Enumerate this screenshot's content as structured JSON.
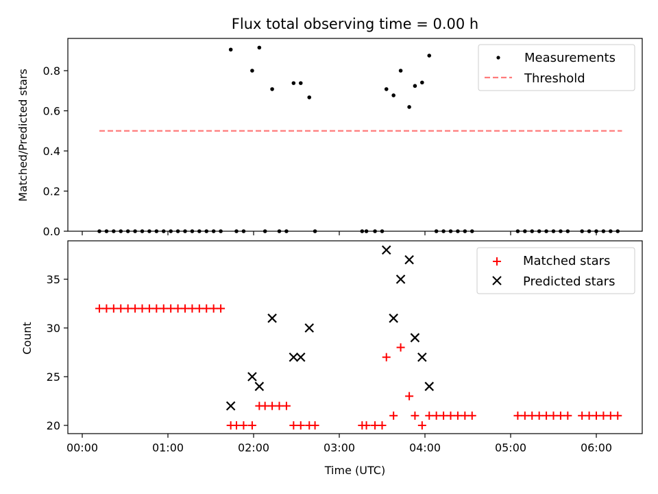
{
  "chart_data": [
    {
      "type": "scatter",
      "title": "Flux total observing time = 0.00 h",
      "xlabel": "",
      "ylabel": "Matched/Predicted stars",
      "xlim": [
        "00:00",
        "06:30"
      ],
      "ylim": [
        0,
        0.96
      ],
      "yticks": [
        0.0,
        0.2,
        0.4,
        0.6,
        0.8
      ],
      "ytick_labels": [
        "0.0",
        "0.2",
        "0.4",
        "0.6",
        "0.8"
      ],
      "xticks": [
        "00:00",
        "01:00",
        "02:00",
        "03:00",
        "04:00",
        "05:00",
        "06:00"
      ],
      "legend_position": "top-right",
      "series": [
        {
          "name": "Measurements",
          "marker": "dot",
          "color": "#000000",
          "points": [
            [
              "00:12",
              0.0
            ],
            [
              "00:17",
              0.0
            ],
            [
              "00:22",
              0.0
            ],
            [
              "00:27",
              0.0
            ],
            [
              "00:32",
              0.0
            ],
            [
              "00:37",
              0.0
            ],
            [
              "00:42",
              0.0
            ],
            [
              "00:47",
              0.0
            ],
            [
              "00:52",
              0.0
            ],
            [
              "00:57",
              0.0
            ],
            [
              "01:02",
              0.0
            ],
            [
              "01:07",
              0.0
            ],
            [
              "01:12",
              0.0
            ],
            [
              "01:17",
              0.0
            ],
            [
              "01:22",
              0.0
            ],
            [
              "01:27",
              0.0
            ],
            [
              "01:32",
              0.0
            ],
            [
              "01:37",
              0.0
            ],
            [
              "01:44",
              0.905
            ],
            [
              "01:48",
              0.0
            ],
            [
              "01:53",
              0.0
            ],
            [
              "01:59",
              0.8
            ],
            [
              "02:04",
              0.915
            ],
            [
              "02:08",
              0.0
            ],
            [
              "02:13",
              0.708
            ],
            [
              "02:18",
              0.0
            ],
            [
              "02:23",
              0.0
            ],
            [
              "02:28",
              0.738
            ],
            [
              "02:33",
              0.738
            ],
            [
              "02:39",
              0.667
            ],
            [
              "02:43",
              0.0
            ],
            [
              "03:16",
              0.0
            ],
            [
              "03:19",
              0.0
            ],
            [
              "03:25",
              0.0
            ],
            [
              "03:30",
              0.0
            ],
            [
              "03:33",
              0.708
            ],
            [
              "03:38",
              0.677
            ],
            [
              "03:43",
              0.8
            ],
            [
              "03:49",
              0.619
            ],
            [
              "03:53",
              0.724
            ],
            [
              "03:58",
              0.741
            ],
            [
              "04:03",
              0.875
            ],
            [
              "04:08",
              0.0
            ],
            [
              "04:13",
              0.0
            ],
            [
              "04:18",
              0.0
            ],
            [
              "04:23",
              0.0
            ],
            [
              "04:28",
              0.0
            ],
            [
              "04:33",
              0.0
            ],
            [
              "05:05",
              0.0
            ],
            [
              "05:10",
              0.0
            ],
            [
              "05:15",
              0.0
            ],
            [
              "05:20",
              0.0
            ],
            [
              "05:25",
              0.0
            ],
            [
              "05:30",
              0.0
            ],
            [
              "05:35",
              0.0
            ],
            [
              "05:40",
              0.0
            ],
            [
              "05:50",
              0.0
            ],
            [
              "05:55",
              0.0
            ],
            [
              "06:00",
              0.0
            ],
            [
              "06:05",
              0.0
            ],
            [
              "06:10",
              0.0
            ],
            [
              "06:15",
              0.0
            ]
          ]
        },
        {
          "name": "Threshold",
          "line_style": "dashed",
          "color": "#ff7b7b",
          "points": [
            [
              "00:12",
              0.5
            ],
            [
              "06:18",
              0.5
            ]
          ]
        }
      ]
    },
    {
      "type": "scatter",
      "title": "",
      "xlabel": "Time (UTC)",
      "ylabel": "Count",
      "xlim": [
        "00:00",
        "06:30"
      ],
      "ylim": [
        19,
        39
      ],
      "yticks": [
        20,
        25,
        30,
        35
      ],
      "ytick_labels": [
        "20",
        "25",
        "30",
        "35"
      ],
      "xticks": [
        "00:00",
        "01:00",
        "02:00",
        "03:00",
        "04:00",
        "05:00",
        "06:00"
      ],
      "xtick_labels": [
        "00:00",
        "01:00",
        "02:00",
        "03:00",
        "04:00",
        "05:00",
        "06:00"
      ],
      "legend_position": "top-right",
      "series": [
        {
          "name": "Matched stars",
          "marker": "plus",
          "color": "#ff0000",
          "points": [
            [
              "00:12",
              32
            ],
            [
              "00:17",
              32
            ],
            [
              "00:22",
              32
            ],
            [
              "00:27",
              32
            ],
            [
              "00:32",
              32
            ],
            [
              "00:37",
              32
            ],
            [
              "00:42",
              32
            ],
            [
              "00:47",
              32
            ],
            [
              "00:52",
              32
            ],
            [
              "00:57",
              32
            ],
            [
              "01:02",
              32
            ],
            [
              "01:07",
              32
            ],
            [
              "01:12",
              32
            ],
            [
              "01:17",
              32
            ],
            [
              "01:22",
              32
            ],
            [
              "01:27",
              32
            ],
            [
              "01:32",
              32
            ],
            [
              "01:37",
              32
            ],
            [
              "01:44",
              20
            ],
            [
              "01:48",
              20
            ],
            [
              "01:53",
              20
            ],
            [
              "01:59",
              20
            ],
            [
              "02:04",
              22
            ],
            [
              "02:08",
              22
            ],
            [
              "02:13",
              22
            ],
            [
              "02:18",
              22
            ],
            [
              "02:23",
              22
            ],
            [
              "02:28",
              20
            ],
            [
              "02:33",
              20
            ],
            [
              "02:39",
              20
            ],
            [
              "02:43",
              20
            ],
            [
              "03:16",
              20
            ],
            [
              "03:19",
              20
            ],
            [
              "03:25",
              20
            ],
            [
              "03:30",
              20
            ],
            [
              "03:33",
              27
            ],
            [
              "03:38",
              21
            ],
            [
              "03:43",
              28
            ],
            [
              "03:49",
              23
            ],
            [
              "03:53",
              21
            ],
            [
              "03:58",
              20
            ],
            [
              "04:03",
              21
            ],
            [
              "04:08",
              21
            ],
            [
              "04:13",
              21
            ],
            [
              "04:18",
              21
            ],
            [
              "04:23",
              21
            ],
            [
              "04:28",
              21
            ],
            [
              "04:33",
              21
            ],
            [
              "05:05",
              21
            ],
            [
              "05:10",
              21
            ],
            [
              "05:15",
              21
            ],
            [
              "05:20",
              21
            ],
            [
              "05:25",
              21
            ],
            [
              "05:30",
              21
            ],
            [
              "05:35",
              21
            ],
            [
              "05:40",
              21
            ],
            [
              "05:50",
              21
            ],
            [
              "05:55",
              21
            ],
            [
              "06:00",
              21
            ],
            [
              "06:05",
              21
            ],
            [
              "06:10",
              21
            ],
            [
              "06:15",
              21
            ]
          ]
        },
        {
          "name": "Predicted stars",
          "marker": "x",
          "color": "#000000",
          "points": [
            [
              "01:44",
              22
            ],
            [
              "01:59",
              25
            ],
            [
              "02:04",
              24
            ],
            [
              "02:13",
              31
            ],
            [
              "02:28",
              27
            ],
            [
              "02:33",
              27
            ],
            [
              "02:39",
              30
            ],
            [
              "03:33",
              38
            ],
            [
              "03:38",
              31
            ],
            [
              "03:43",
              35
            ],
            [
              "03:49",
              37
            ],
            [
              "03:53",
              29
            ],
            [
              "03:58",
              27
            ],
            [
              "04:03",
              24
            ]
          ]
        }
      ]
    }
  ]
}
